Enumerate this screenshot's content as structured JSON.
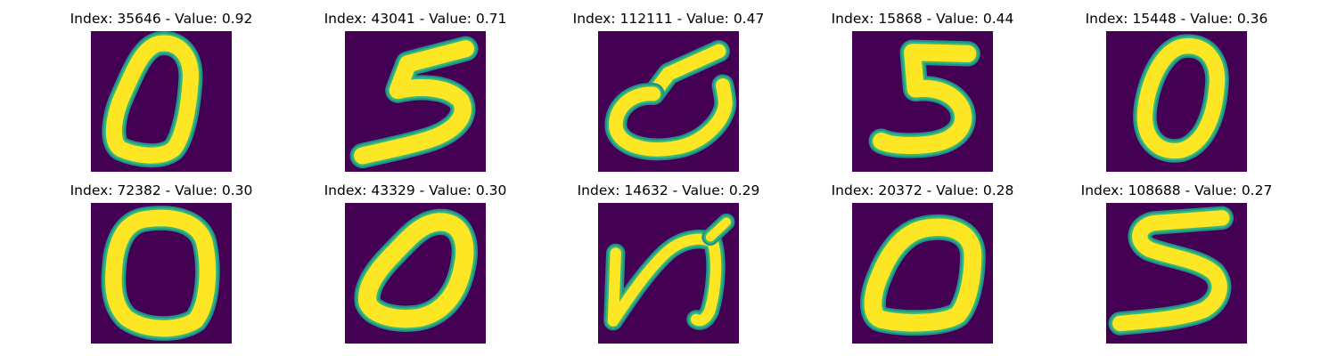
{
  "colors": {
    "background": "#440154",
    "stroke_core": "#fde725",
    "stroke_edge": "#35b779",
    "stroke_edge_dark": "#21918c"
  },
  "panels": [
    {
      "title": "Index: 35646 - Value: 0.92",
      "digit": "0"
    },
    {
      "title": "Index: 43041 - Value: 0.71",
      "digit": "5"
    },
    {
      "title": "Index: 112111 - Value: 0.47",
      "digit": "5"
    },
    {
      "title": "Index: 15868 - Value: 0.44",
      "digit": "5"
    },
    {
      "title": "Index: 15448 - Value: 0.36",
      "digit": "0"
    },
    {
      "title": "Index: 72382 - Value: 0.30",
      "digit": "0"
    },
    {
      "title": "Index: 43329 - Value: 0.30",
      "digit": "0"
    },
    {
      "title": "Index: 14632 - Value: 0.29",
      "digit": "5"
    },
    {
      "title": "Index: 20372 - Value: 0.28",
      "digit": "0"
    },
    {
      "title": "Index: 108688 - Value: 0.27",
      "digit": "5"
    }
  ]
}
